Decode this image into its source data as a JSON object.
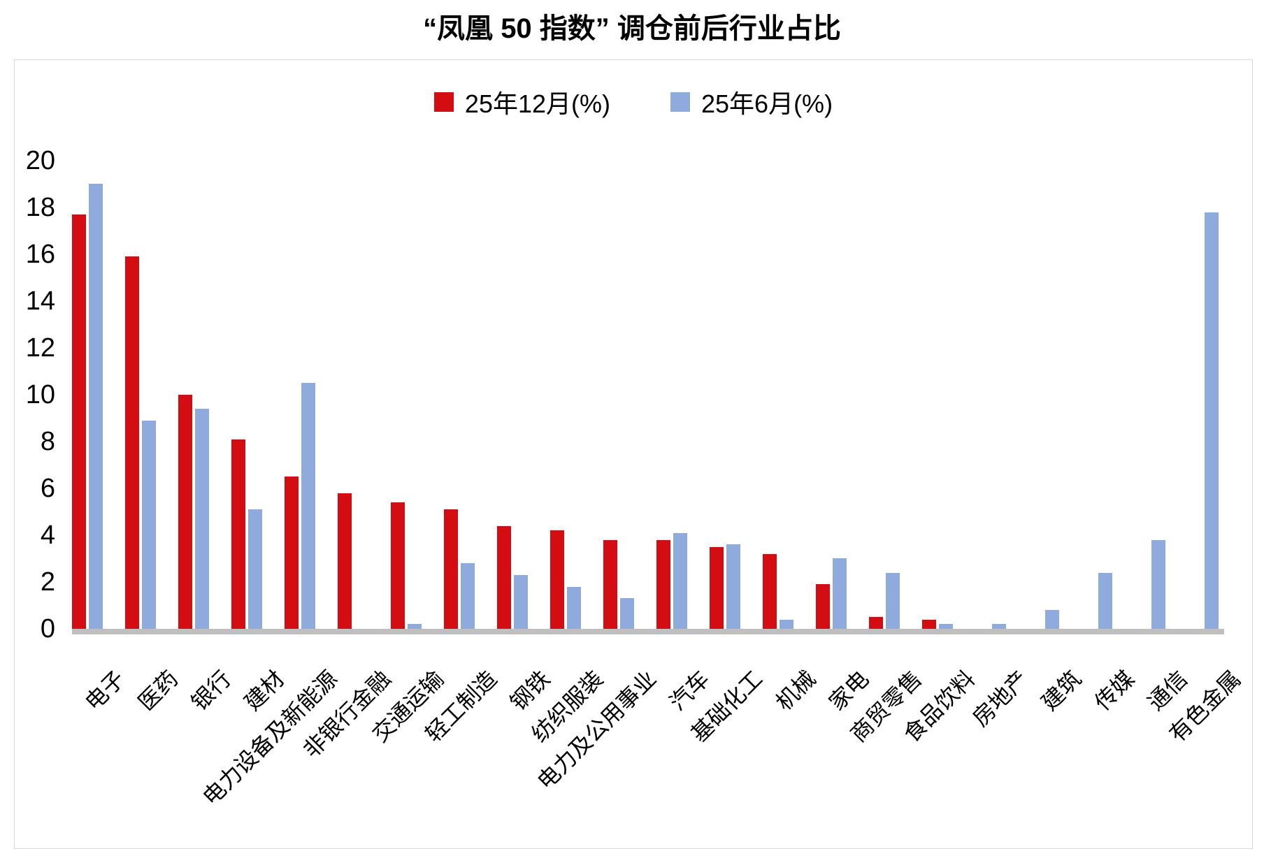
{
  "title": "“凤凰 50 指数” 调仓前后行业占比",
  "legend": [
    {
      "label": "25年12月(%)",
      "color": "#d40d12"
    },
    {
      "label": "25年6月(%)",
      "color": "#8faadc"
    }
  ],
  "axis_colors": {
    "baseline": "#bfbfbf",
    "frame": "#d9d9d9"
  },
  "chart_data": {
    "type": "bar",
    "title": "“凤凰 50 指数” 调仓前后行业占比",
    "xlabel": "",
    "ylabel": "",
    "ylim": [
      0,
      20
    ],
    "yticks": [
      0,
      2,
      4,
      6,
      8,
      10,
      12,
      14,
      16,
      18,
      20
    ],
    "grid": false,
    "legend_position": "top",
    "categories": [
      "电子",
      "医药",
      "银行",
      "建材",
      "电力设备及新能源",
      "非银行金融",
      "交通运输",
      "轻工制造",
      "钢铁",
      "纺织服装",
      "电力及公用事业",
      "汽车",
      "基础化工",
      "机械",
      "家电",
      "商贸零售",
      "食品饮料",
      "房地产",
      "建筑",
      "传媒",
      "通信",
      "有色金属"
    ],
    "series": [
      {
        "name": "25年12月(%)",
        "color": "#d40d12",
        "values": [
          17.7,
          15.9,
          10.0,
          8.1,
          6.5,
          5.8,
          5.4,
          5.1,
          4.4,
          4.2,
          3.8,
          3.8,
          3.5,
          3.2,
          1.9,
          0.5,
          0.4,
          0,
          0,
          0,
          0,
          0
        ]
      },
      {
        "name": "25年6月(%)",
        "color": "#8faadc",
        "values": [
          19.0,
          8.9,
          9.4,
          5.1,
          10.5,
          0,
          0.2,
          2.8,
          2.3,
          1.8,
          1.3,
          4.1,
          3.6,
          0.4,
          3.0,
          2.4,
          0.2,
          0.2,
          0.8,
          2.4,
          3.8,
          17.8
        ]
      }
    ]
  }
}
